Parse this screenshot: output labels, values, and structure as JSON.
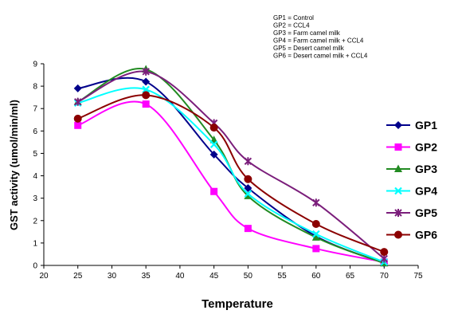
{
  "chart_data": {
    "type": "line",
    "title": "",
    "xlabel": "Temperature",
    "ylabel": "GST activity  (umol/min/ml)",
    "xlim": [
      20,
      75
    ],
    "ylim": [
      0,
      9
    ],
    "xticks": [
      20,
      25,
      30,
      35,
      40,
      45,
      50,
      55,
      60,
      65,
      70,
      75
    ],
    "yticks": [
      0,
      1,
      2,
      3,
      4,
      5,
      6,
      7,
      8,
      9
    ],
    "x": [
      25,
      35,
      45,
      50,
      60,
      70
    ],
    "smooth": true,
    "legend_position": "right",
    "annotations": [
      "GP1 = Control",
      "GP2 = CCL4",
      "GP3 = Farm camel milk",
      "GP4 = Farm camel  milk + CCL4",
      "GP5 = Desert camel milk",
      "GP6 = Desert camel milk + CCL4"
    ],
    "series": [
      {
        "name": "GP1",
        "color": "#00008B",
        "marker": "diamond",
        "values": [
          7.9,
          8.2,
          4.95,
          3.45,
          1.3,
          0.1
        ]
      },
      {
        "name": "GP2",
        "color": "#FF00FF",
        "marker": "square",
        "values": [
          6.25,
          7.2,
          3.3,
          1.65,
          0.75,
          0.15
        ]
      },
      {
        "name": "GP3",
        "color": "#228B22",
        "marker": "triangle",
        "values": [
          7.3,
          8.75,
          5.6,
          3.1,
          1.25,
          0.1
        ]
      },
      {
        "name": "GP4",
        "color": "#00FFFF",
        "marker": "x",
        "values": [
          7.25,
          7.85,
          5.4,
          3.2,
          1.4,
          0.15
        ]
      },
      {
        "name": "GP5",
        "color": "#7B1E7B",
        "marker": "star",
        "values": [
          7.3,
          8.65,
          6.35,
          4.65,
          2.8,
          0.3
        ]
      },
      {
        "name": "GP6",
        "color": "#8B0000",
        "marker": "circle",
        "values": [
          6.55,
          7.6,
          6.15,
          3.85,
          1.85,
          0.6
        ]
      }
    ]
  }
}
